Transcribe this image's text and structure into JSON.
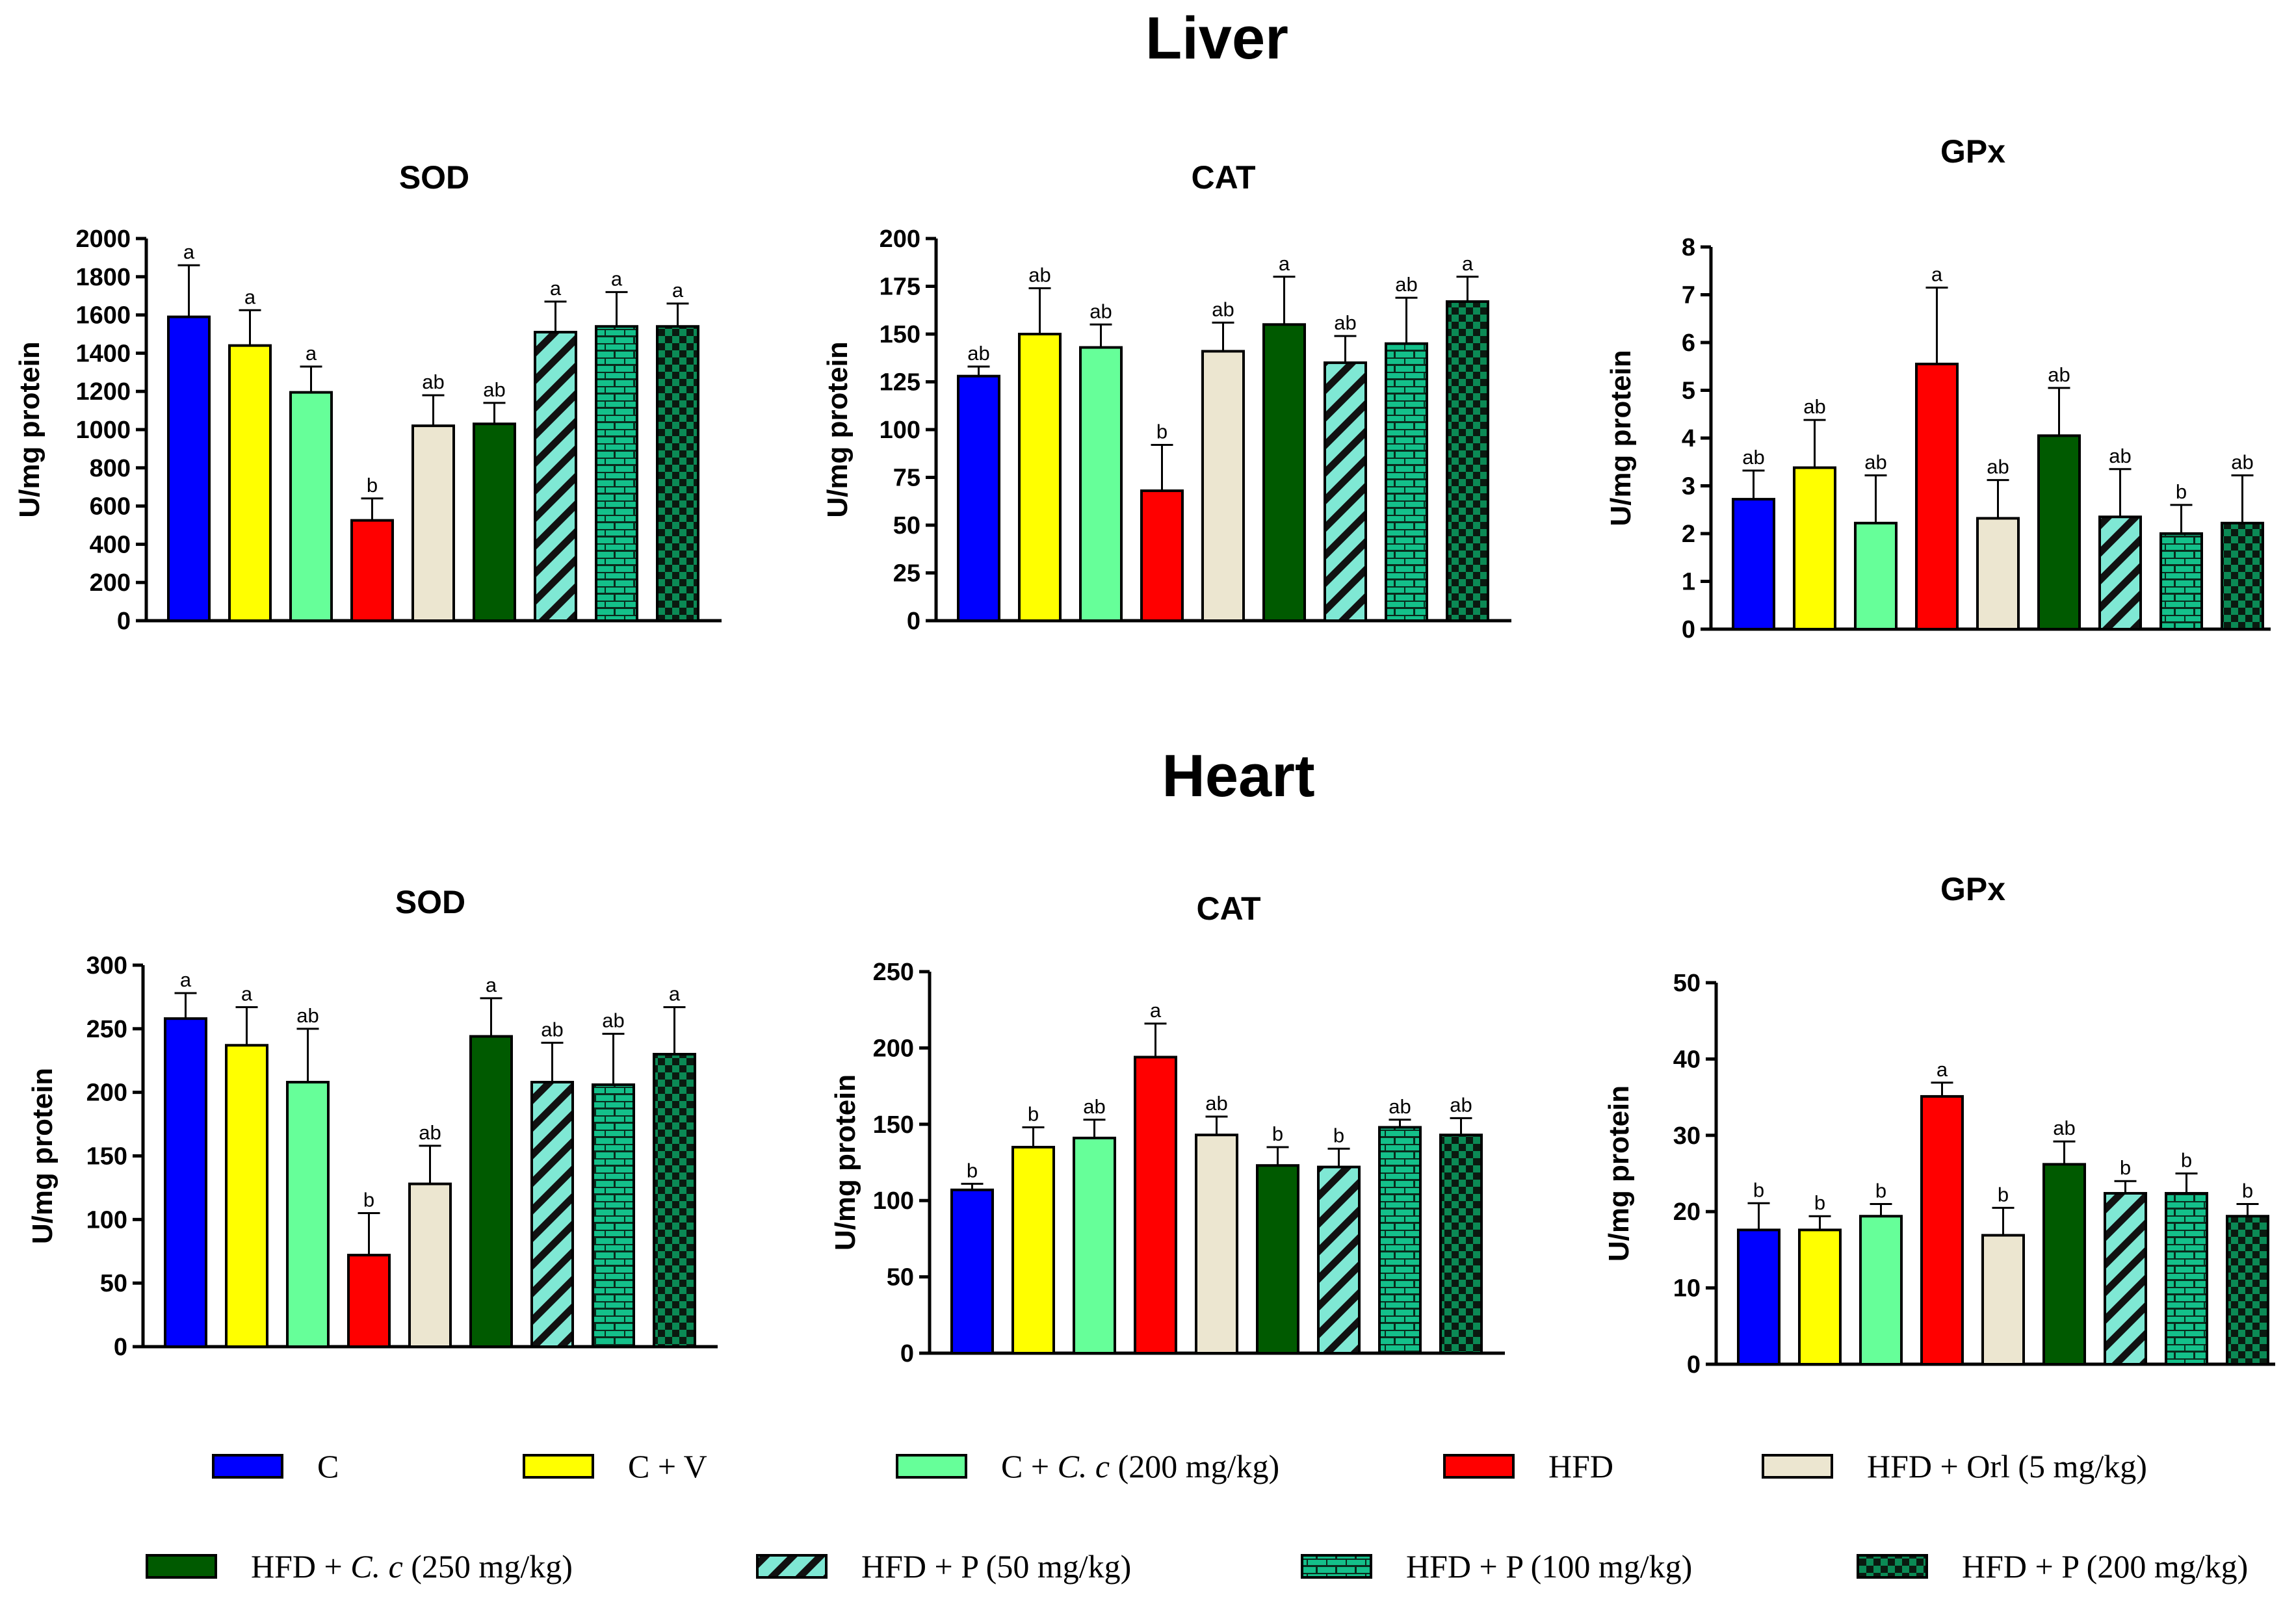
{
  "sections": [
    {
      "title": "Liver"
    },
    {
      "title": "Heart"
    }
  ],
  "groups": [
    {
      "id": "C",
      "label": "C",
      "color": "#0000FF",
      "pattern": "none"
    },
    {
      "id": "CV",
      "label": "C + V",
      "color": "#FFFF00",
      "pattern": "none"
    },
    {
      "id": "CCc",
      "label": "C + C. c (200 mg/kg)",
      "label_pre": "C + ",
      "label_italic": "C. c",
      "label_post": " (200 mg/kg)",
      "color": "#66FF99",
      "pattern": "none"
    },
    {
      "id": "HFD",
      "label": "HFD",
      "color": "#FF0000",
      "pattern": "none"
    },
    {
      "id": "HFDOrl",
      "label": "HFD + Orl (5 mg/kg)",
      "color": "#ECE6D0",
      "pattern": "none"
    },
    {
      "id": "HFDCc",
      "label": "HFD + C. c (250 mg/kg)",
      "label_pre": "HFD + ",
      "label_italic": "C. c",
      "label_post": " (250 mg/kg)",
      "color": "#005A00",
      "pattern": "none"
    },
    {
      "id": "P50",
      "label": "HFD + P (50 mg/kg)",
      "color": "#7FE8D4",
      "pattern": "diagonal"
    },
    {
      "id": "P100",
      "label": "HFD + P (100 mg/kg)",
      "color": "#14C08A",
      "pattern": "brick"
    },
    {
      "id": "P200",
      "label": "HFD + P (200 mg/kg)",
      "color": "#0B8A55",
      "pattern": "checker"
    }
  ],
  "chart_data": [
    {
      "type": "bar",
      "section": "Liver",
      "title": "SOD",
      "ylabel": "U/mg protein",
      "ylim": [
        0,
        2000
      ],
      "yticks": [
        0,
        200,
        400,
        600,
        800,
        1000,
        1200,
        1400,
        1600,
        1800,
        2000
      ],
      "values": [
        1590,
        1440,
        1195,
        525,
        1020,
        1030,
        1510,
        1540,
        1540
      ],
      "errors": [
        270,
        185,
        135,
        115,
        160,
        110,
        160,
        180,
        120
      ],
      "sig": [
        "a",
        "a",
        "a",
        "b",
        "ab",
        "ab",
        "a",
        "a",
        "a"
      ]
    },
    {
      "type": "bar",
      "section": "Liver",
      "title": "CAT",
      "ylabel": "U/mg protein",
      "ylim": [
        0,
        200
      ],
      "yticks": [
        0,
        25,
        50,
        75,
        100,
        125,
        150,
        175,
        200
      ],
      "values": [
        128,
        150,
        143,
        68,
        141,
        155,
        135,
        145,
        167
      ],
      "errors": [
        5,
        24,
        12,
        24,
        15,
        25,
        14,
        24,
        13
      ],
      "sig": [
        "ab",
        "ab",
        "ab",
        "b",
        "ab",
        "a",
        "ab",
        "ab",
        "a"
      ]
    },
    {
      "type": "bar",
      "section": "Liver",
      "title": "GPx",
      "ylabel": "U/mg protein",
      "ylim": [
        0,
        8
      ],
      "yticks": [
        0,
        1,
        2,
        3,
        4,
        5,
        6,
        7,
        8
      ],
      "values": [
        2.72,
        3.38,
        2.22,
        5.55,
        2.32,
        4.05,
        2.35,
        2.0,
        2.22
      ],
      "errors": [
        0.6,
        1.0,
        1.0,
        1.6,
        0.8,
        1.0,
        1.0,
        0.6,
        1.0
      ],
      "sig": [
        "ab",
        "ab",
        "ab",
        "a",
        "ab",
        "ab",
        "ab",
        "b",
        "ab"
      ]
    },
    {
      "type": "bar",
      "section": "Heart",
      "title": "SOD",
      "ylabel": "U/mg protein",
      "ylim": [
        0,
        300
      ],
      "yticks": [
        0,
        50,
        100,
        150,
        200,
        250,
        300
      ],
      "values": [
        258,
        237,
        208,
        72,
        128,
        244,
        208,
        206,
        230
      ],
      "errors": [
        20,
        30,
        42,
        33,
        30,
        30,
        31,
        40,
        37
      ],
      "sig": [
        "a",
        "a",
        "ab",
        "b",
        "ab",
        "a",
        "ab",
        "ab",
        "a"
      ]
    },
    {
      "type": "bar",
      "section": "Heart",
      "title": "CAT",
      "ylabel": "U/mg protein",
      "ylim": [
        0,
        250
      ],
      "yticks": [
        0,
        50,
        100,
        150,
        200,
        250
      ],
      "values": [
        107,
        135,
        141,
        194,
        143,
        123,
        122,
        148,
        143
      ],
      "errors": [
        4,
        13,
        12,
        22,
        12,
        12,
        12,
        5,
        11
      ],
      "sig": [
        "b",
        "b",
        "ab",
        "a",
        "ab",
        "b",
        "b",
        "ab",
        "ab"
      ]
    },
    {
      "type": "bar",
      "section": "Heart",
      "title": "GPx",
      "ylabel": "U/mg protein",
      "ylim": [
        0,
        50
      ],
      "yticks": [
        0,
        10,
        20,
        30,
        40,
        50
      ],
      "values": [
        17.6,
        17.6,
        19.4,
        35.1,
        16.9,
        26.2,
        22.4,
        22.4,
        19.4
      ],
      "errors": [
        3.5,
        1.8,
        1.6,
        1.8,
        3.6,
        3.0,
        1.6,
        2.6,
        1.6
      ],
      "sig": [
        "b",
        "b",
        "b",
        "a",
        "b",
        "ab",
        "b",
        "b",
        "b"
      ]
    }
  ]
}
